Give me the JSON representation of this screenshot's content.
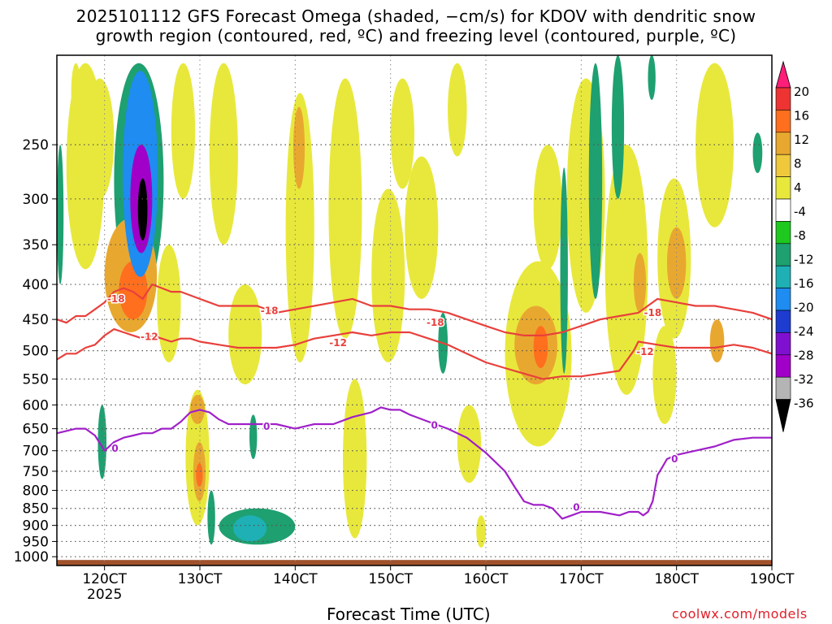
{
  "title_line1": "2025101112 GFS Forecast Omega (shaded, −cm/s) for KDOV with dendritic snow",
  "title_line2": "growth region (contoured, red, ºC) and freezing level (contoured, purple, ºC)",
  "xlabel": "Forecast Time (UTC)",
  "credit": "coolwx.com/models",
  "chart_data": {
    "type": "heatmap",
    "title": "2025101112 GFS Forecast Omega (shaded, −cm/s) for KDOV with dendritic snow growth region (contoured, red, ºC) and freezing level (contoured, purple, ºC)",
    "xlabel": "Forecast Time (UTC)",
    "ylabel": "",
    "x_unit_hours": true,
    "xlim": [
      115,
      190
    ],
    "ylim_hpa": [
      1030,
      185
    ],
    "y_scale": "log",
    "x_ticks": [
      {
        "v": 120,
        "label": "120CT",
        "sub": "2025"
      },
      {
        "v": 130,
        "label": "130CT",
        "sub": ""
      },
      {
        "v": 140,
        "label": "140CT",
        "sub": ""
      },
      {
        "v": 150,
        "label": "150CT",
        "sub": ""
      },
      {
        "v": 160,
        "label": "160CT",
        "sub": ""
      },
      {
        "v": 170,
        "label": "170CT",
        "sub": ""
      },
      {
        "v": 180,
        "label": "180CT",
        "sub": ""
      },
      {
        "v": 190,
        "label": "190CT",
        "sub": ""
      }
    ],
    "y_ticks": [
      250,
      300,
      350,
      400,
      450,
      500,
      550,
      600,
      650,
      700,
      750,
      800,
      850,
      900,
      950,
      1000
    ],
    "grid": true,
    "colorbar": {
      "labels": [
        "20",
        "16",
        "12",
        "8",
        "4",
        "-4",
        "-8",
        "-12",
        "-16",
        "-20",
        "-24",
        "-28",
        "-32",
        "-36"
      ],
      "colors": [
        "#ff1e78",
        "#ee3333",
        "#ff6f1e",
        "#e8a830",
        "#efc83c",
        "#e8e83c",
        "#ffffff",
        "#1ec81e",
        "#1ea070",
        "#1eb0b4",
        "#1e8cf0",
        "#1e3cd0",
        "#8010d0",
        "#a000c8",
        "#b4b4b4",
        "#000000"
      ]
    },
    "omega_regions": [
      {
        "name": "",
        "x0": 123.5,
        "x1": 124.5,
        "p0": 280,
        "p1": 345,
        "value": -36
      },
      {
        "name": "",
        "x0": 122.7,
        "x1": 125,
        "p0": 250,
        "p1": 360,
        "value": -28
      },
      {
        "name": "",
        "x0": 121.9,
        "x1": 125.6,
        "p0": 195,
        "p1": 390,
        "value": -16
      },
      {
        "name": "",
        "x0": 121,
        "x1": 126.2,
        "p0": 190,
        "p1": 420,
        "value": -8
      },
      {
        "name": "",
        "x0": 132,
        "x1": 140,
        "p0": 850,
        "p1": 960,
        "value": -8
      },
      {
        "name": "",
        "x0": 133.5,
        "x1": 137,
        "p0": 870,
        "p1": 950,
        "value": -12
      },
      {
        "name": "",
        "x0": 130.8,
        "x1": 131.6,
        "p0": 800,
        "p1": 960,
        "value": -8
      },
      {
        "name": "",
        "x0": 135.2,
        "x1": 136,
        "p0": 620,
        "p1": 720,
        "value": -8
      },
      {
        "name": "",
        "x0": 155,
        "x1": 156,
        "p0": 440,
        "p1": 540,
        "value": -8
      },
      {
        "name": "",
        "x0": 167.8,
        "x1": 168.6,
        "p0": 270,
        "p1": 540,
        "value": -8
      },
      {
        "name": "",
        "x0": 170.8,
        "x1": 172.2,
        "p0": 190,
        "p1": 420,
        "value": -8
      },
      {
        "name": "",
        "x0": 173.2,
        "x1": 174.5,
        "p0": 185,
        "p1": 300,
        "value": -8
      },
      {
        "name": "",
        "x0": 177,
        "x1": 177.8,
        "p0": 185,
        "p1": 215,
        "value": -8
      },
      {
        "name": "",
        "x0": 188,
        "x1": 189,
        "p0": 240,
        "p1": 275,
        "value": -8
      },
      {
        "name": "",
        "x0": 115,
        "x1": 115.7,
        "p0": 250,
        "p1": 400,
        "value": -8
      },
      {
        "name": "",
        "x0": 119.3,
        "x1": 120.2,
        "p0": 600,
        "p1": 770,
        "value": -8
      },
      {
        "name": "",
        "x0": 116.5,
        "x1": 117.5,
        "p0": 190,
        "p1": 230,
        "value": 4
      },
      {
        "name": "",
        "x0": 120,
        "x1": 125.5,
        "p0": 320,
        "p1": 470,
        "value": 8
      },
      {
        "name": "",
        "x0": 121.5,
        "x1": 124.5,
        "p0": 370,
        "p1": 450,
        "value": 12
      },
      {
        "name": "",
        "x0": 116,
        "x1": 120,
        "p0": 190,
        "p1": 380,
        "value": 4
      },
      {
        "name": "",
        "x0": 118,
        "x1": 121,
        "p0": 200,
        "p1": 300,
        "value": 4
      },
      {
        "name": "",
        "x0": 125.5,
        "x1": 128,
        "p0": 350,
        "p1": 520,
        "value": 4
      },
      {
        "name": "",
        "x0": 128.5,
        "x1": 131,
        "p0": 570,
        "p1": 900,
        "value": 4
      },
      {
        "name": "",
        "x0": 129.3,
        "x1": 130.6,
        "p0": 680,
        "p1": 830,
        "value": 8
      },
      {
        "name": "",
        "x0": 129.6,
        "x1": 130.3,
        "p0": 730,
        "p1": 790,
        "value": 12
      },
      {
        "name": "",
        "x0": 129,
        "x1": 130.5,
        "p0": 580,
        "p1": 640,
        "value": 8
      },
      {
        "name": "",
        "x0": 127,
        "x1": 129.5,
        "p0": 190,
        "p1": 300,
        "value": 4
      },
      {
        "name": "",
        "x0": 131,
        "x1": 134,
        "p0": 190,
        "p1": 350,
        "value": 4
      },
      {
        "name": "",
        "x0": 133,
        "x1": 136.5,
        "p0": 400,
        "p1": 560,
        "value": 4
      },
      {
        "name": "",
        "x0": 139,
        "x1": 142,
        "p0": 210,
        "p1": 520,
        "value": 4
      },
      {
        "name": "",
        "x0": 139.8,
        "x1": 141,
        "p0": 220,
        "p1": 290,
        "value": 8
      },
      {
        "name": "",
        "x0": 143.5,
        "x1": 147,
        "p0": 200,
        "p1": 480,
        "value": 4
      },
      {
        "name": "",
        "x0": 144.5,
        "x1": 146.5,
        "p0": 240,
        "p1": 470,
        "value": 4
      },
      {
        "name": "",
        "x0": 145,
        "x1": 147.5,
        "p0": 550,
        "p1": 940,
        "value": 4
      },
      {
        "name": "",
        "x0": 148,
        "x1": 151.5,
        "p0": 290,
        "p1": 520,
        "value": 4
      },
      {
        "name": "",
        "x0": 150,
        "x1": 152.5,
        "p0": 200,
        "p1": 290,
        "value": 4
      },
      {
        "name": "",
        "x0": 151.5,
        "x1": 155,
        "p0": 260,
        "p1": 420,
        "value": 4
      },
      {
        "name": "",
        "x0": 156,
        "x1": 158,
        "p0": 190,
        "p1": 260,
        "value": 4
      },
      {
        "name": "",
        "x0": 157,
        "x1": 159.5,
        "p0": 600,
        "p1": 780,
        "value": 4
      },
      {
        "name": "",
        "x0": 159,
        "x1": 160,
        "p0": 870,
        "p1": 970,
        "value": 4
      },
      {
        "name": "",
        "x0": 162,
        "x1": 169,
        "p0": 370,
        "p1": 690,
        "value": 4
      },
      {
        "name": "",
        "x0": 163,
        "x1": 167.5,
        "p0": 430,
        "p1": 560,
        "value": 8
      },
      {
        "name": "",
        "x0": 165,
        "x1": 166.5,
        "p0": 460,
        "p1": 530,
        "value": 12
      },
      {
        "name": "",
        "x0": 165,
        "x1": 168,
        "p0": 250,
        "p1": 380,
        "value": 4
      },
      {
        "name": "",
        "x0": 168.5,
        "x1": 172.5,
        "p0": 200,
        "p1": 440,
        "value": 4
      },
      {
        "name": "",
        "x0": 172.5,
        "x1": 177,
        "p0": 250,
        "p1": 580,
        "value": 4
      },
      {
        "name": "",
        "x0": 175.5,
        "x1": 176.8,
        "p0": 360,
        "p1": 440,
        "value": 8
      },
      {
        "name": "",
        "x0": 178,
        "x1": 181.5,
        "p0": 280,
        "p1": 480,
        "value": 4
      },
      {
        "name": "",
        "x0": 179,
        "x1": 181,
        "p0": 330,
        "p1": 420,
        "value": 8
      },
      {
        "name": "",
        "x0": 177.5,
        "x1": 180,
        "p0": 460,
        "p1": 640,
        "value": 4
      },
      {
        "name": "",
        "x0": 183.5,
        "x1": 185,
        "p0": 450,
        "p1": 520,
        "value": 8
      },
      {
        "name": "",
        "x0": 182,
        "x1": 186,
        "p0": 190,
        "p1": 330,
        "value": 4
      },
      {
        "name": "",
        "x0": 183,
        "x1": 185,
        "p0": 190,
        "p1": 220,
        "value": 4
      }
    ],
    "series": [
      {
        "name": "",
        "color": "#e8403c",
        "label": "-18",
        "label_at": [
          [
            121.2,
            420
          ],
          [
            137.3,
            437
          ],
          [
            154.7,
            455
          ],
          [
            177.5,
            440
          ]
        ],
        "x": [
          115,
          116,
          117,
          118,
          119,
          120,
          121,
          122,
          123,
          124,
          125,
          126,
          127,
          128,
          129,
          130,
          132,
          134,
          136,
          138,
          140,
          142,
          144,
          146,
          148,
          150,
          152,
          154,
          156,
          158,
          160,
          162,
          164,
          166,
          168,
          170,
          172,
          174,
          176,
          178,
          180,
          182,
          184,
          186,
          188,
          190
        ],
        "p": [
          450,
          455,
          445,
          445,
          435,
          425,
          410,
          405,
          410,
          420,
          400,
          405,
          410,
          410,
          415,
          420,
          430,
          430,
          430,
          440,
          435,
          430,
          425,
          420,
          430,
          430,
          435,
          435,
          440,
          450,
          460,
          470,
          475,
          475,
          470,
          460,
          450,
          445,
          440,
          420,
          425,
          430,
          430,
          435,
          440,
          450
        ]
      },
      {
        "name": "",
        "color": "#e8403c",
        "label": "-12",
        "label_at": [
          [
            124.7,
            477
          ],
          [
            144.5,
            487
          ],
          [
            176.7,
            502
          ]
        ],
        "x": [
          115,
          116,
          117,
          118,
          119,
          120,
          121,
          122,
          123,
          124,
          125,
          126,
          127,
          128,
          129,
          130,
          132,
          134,
          136,
          138,
          140,
          142,
          144,
          146,
          148,
          150,
          152,
          154,
          156,
          158,
          160,
          162,
          164,
          166,
          168,
          170,
          172,
          174,
          175.5,
          176,
          178,
          180,
          182,
          184,
          186,
          188,
          190
        ],
        "p": [
          515,
          505,
          505,
          495,
          490,
          475,
          465,
          470,
          475,
          480,
          475,
          480,
          485,
          480,
          480,
          485,
          490,
          495,
          495,
          495,
          490,
          480,
          475,
          470,
          475,
          470,
          470,
          480,
          490,
          505,
          520,
          530,
          540,
          550,
          545,
          545,
          540,
          535,
          500,
          485,
          490,
          495,
          495,
          495,
          490,
          495,
          505
        ]
      },
      {
        "name": "",
        "color": "#a020c8",
        "label": "0",
        "label_at": [
          [
            121.1,
            695
          ],
          [
            137,
            645
          ],
          [
            154.6,
            643
          ],
          [
            169.5,
            847
          ],
          [
            179.8,
            720
          ]
        ],
        "x": [
          115,
          116,
          117,
          118,
          119,
          120,
          121,
          122,
          123,
          124,
          125,
          126,
          127,
          128,
          129,
          130,
          131,
          132,
          133,
          134,
          136,
          138,
          140,
          142,
          144,
          146,
          148,
          149,
          150,
          151,
          152,
          154,
          156,
          158,
          160,
          162,
          163,
          164,
          165,
          166,
          167,
          168,
          169,
          170,
          172,
          174,
          175,
          176,
          176.5,
          177,
          177.5,
          178,
          178.5,
          179,
          180,
          182,
          184,
          186,
          188,
          190
        ],
        "p": [
          660,
          655,
          650,
          650,
          665,
          700,
          680,
          670,
          665,
          660,
          660,
          650,
          650,
          635,
          615,
          610,
          615,
          630,
          640,
          640,
          640,
          640,
          650,
          640,
          640,
          625,
          615,
          605,
          610,
          610,
          620,
          635,
          650,
          670,
          705,
          750,
          790,
          830,
          840,
          840,
          850,
          880,
          870,
          860,
          860,
          870,
          860,
          860,
          870,
          860,
          830,
          760,
          740,
          720,
          710,
          700,
          690,
          675,
          670,
          670
        ]
      }
    ]
  }
}
